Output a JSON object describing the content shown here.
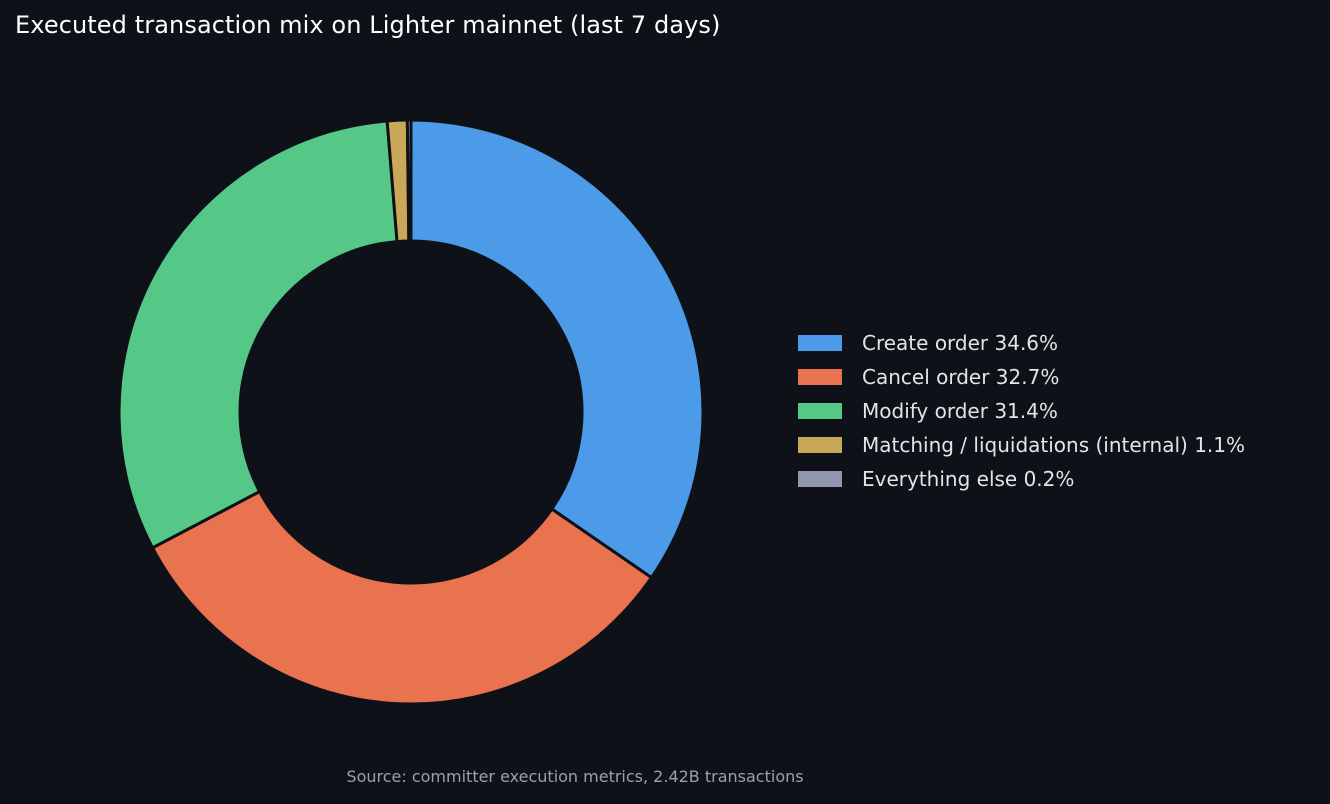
{
  "chart_data": {
    "type": "pie",
    "variant": "donut",
    "title": "Executed transaction mix on Lighter mainnet (last 7 days)",
    "categories": [
      "Create order",
      "Cancel order",
      "Modify order",
      "Matching / liquidations (internal)",
      "Everything else"
    ],
    "values": [
      34.6,
      32.7,
      31.4,
      1.1,
      0.2
    ],
    "unit": "%",
    "colors": [
      "#4c9be8",
      "#e8734e",
      "#55c787",
      "#c9a857",
      "#8f96ad"
    ],
    "legend_entries": [
      "Create order  34.6%",
      "Cancel order  32.7%",
      "Modify order  31.4%",
      "Matching / liquidations (internal)  1.1%",
      "Everything else  0.2%"
    ],
    "legend_position": "right",
    "source_note": "Source: committer execution metrics, 2.42B transactions"
  }
}
